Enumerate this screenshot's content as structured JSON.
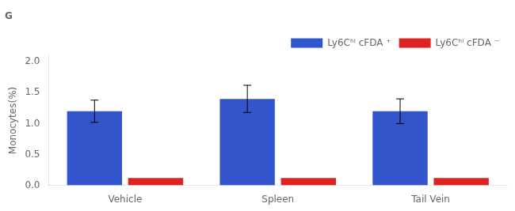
{
  "chart_data": {
    "type": "bar",
    "title": "G",
    "categories": [
      "Vehicle",
      "Spleen",
      "Tail Vein"
    ],
    "series": [
      {
        "name": "Ly6Cʰⁱ cFDA ⁺",
        "color": "#3355cc",
        "values": [
          1.2,
          1.4,
          1.2
        ],
        "errors": [
          0.18,
          0.22,
          0.2
        ]
      },
      {
        "name": "Ly6Cʰⁱ cFDA ⁻",
        "color": "#dd2222",
        "values": [
          0.12,
          0.12,
          0.12
        ]
      }
    ],
    "ylabel": "Monocytes(%)",
    "ylim": [
      0,
      2.1
    ],
    "yticks": [
      {
        "value": 0,
        "label": "0.0"
      },
      0.5,
      {
        "value": 1,
        "label": "1.0"
      },
      1.5,
      {
        "value": 2,
        "label": "2.0"
      }
    ],
    "grid": false,
    "legend": "upper right"
  }
}
